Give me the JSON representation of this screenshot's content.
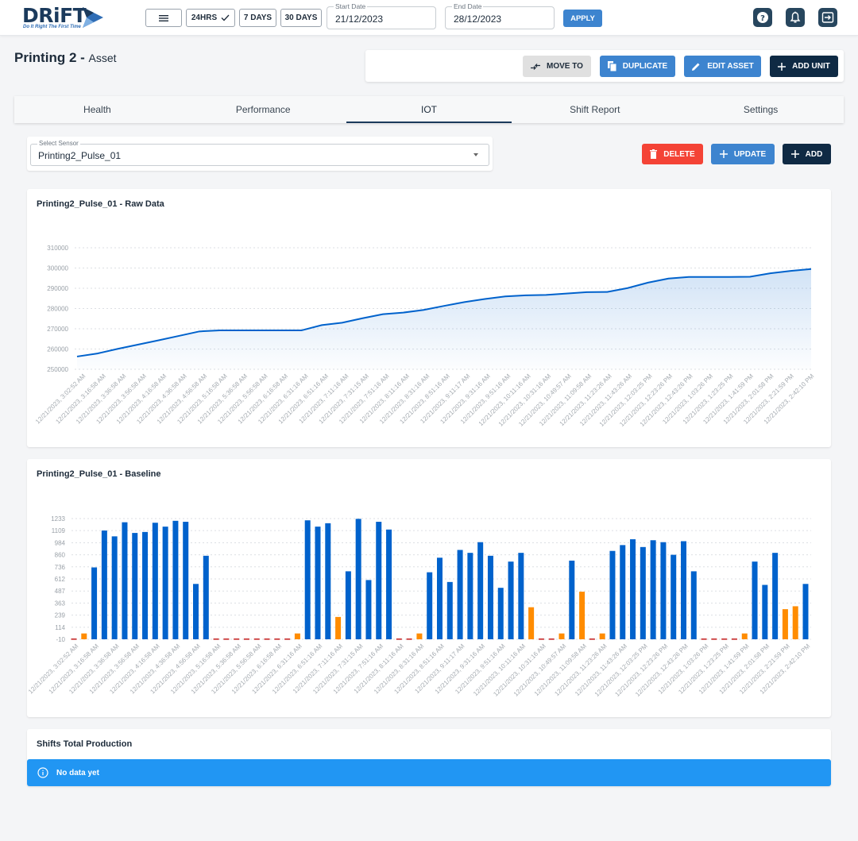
{
  "brand": {
    "name": "DRiFT",
    "tagline": "Do It Right The First Time"
  },
  "topbar": {
    "menu_button": "menu-icon",
    "range_buttons": [
      {
        "label": "24HRS",
        "selected": true
      },
      {
        "label": "7 DAYS",
        "selected": false
      },
      {
        "label": "30 DAYS",
        "selected": false
      }
    ],
    "start_date": {
      "label": "Start Date",
      "value": "21/12/2023"
    },
    "end_date": {
      "label": "End Date",
      "value": "28/12/2023"
    },
    "apply_label": "APPLY",
    "icons": [
      "help-icon",
      "bell-icon",
      "logout-icon"
    ]
  },
  "page": {
    "title": "Printing 2 -",
    "subtitle": "Asset"
  },
  "actions": {
    "move_to": "MOVE TO",
    "duplicate": "DUPLICATE",
    "edit_asset": "EDIT ASSET",
    "add_unit": "ADD UNIT"
  },
  "tabs": [
    {
      "label": "Health",
      "active": false
    },
    {
      "label": "Performance",
      "active": false
    },
    {
      "label": "IOT",
      "active": true
    },
    {
      "label": "Shift Report",
      "active": false
    },
    {
      "label": "Settings",
      "active": false
    }
  ],
  "sensor": {
    "label": "Select Sensor",
    "value": "Printing2_Pulse_01",
    "delete": "DELETE",
    "update": "UPDATE",
    "add": "ADD"
  },
  "colors": {
    "navy": "#0f2a44",
    "blue_button": "#3d84cf",
    "danger": "#f44336",
    "info": "#2196f3",
    "bar_blue": "#0062cc",
    "bar_orange": "#ff8c00",
    "bar_red": "#c62828"
  },
  "raw_chart": {
    "title": "Printing2_Pulse_01 - Raw Data"
  },
  "baseline_chart": {
    "title": "Printing2_Pulse_01 - Baseline"
  },
  "shifts": {
    "title": "Shifts Total Production",
    "message": "No data yet"
  },
  "chart_data": [
    {
      "type": "area",
      "title": "Printing2_Pulse_01 - Raw Data",
      "xlabel": "",
      "ylabel": "",
      "ylim": [
        250000,
        310000
      ],
      "yticks": [
        250000,
        260000,
        270000,
        280000,
        290000,
        300000,
        310000
      ],
      "grid": true,
      "x": [
        "12/21/2023, 3:02:52 AM",
        "12/21/2023, 3:16:58 AM",
        "12/21/2023, 3:36:58 AM",
        "12/21/2023, 3:56:58 AM",
        "12/21/2023, 4:16:58 AM",
        "12/21/2023, 4:36:58 AM",
        "12/21/2023, 4:56:58 AM",
        "12/21/2023, 5:16:58 AM",
        "12/21/2023, 5:36:58 AM",
        "12/21/2023, 5:56:58 AM",
        "12/21/2023, 6:16:58 AM",
        "12/21/2023, 6:31:16 AM",
        "12/21/2023, 6:51:16 AM",
        "12/21/2023, 7:11:16 AM",
        "12/21/2023, 7:31:15 AM",
        "12/21/2023, 7:51:16 AM",
        "12/21/2023, 8:11:16 AM",
        "12/21/2023, 8:31:16 AM",
        "12/21/2023, 8:51:16 AM",
        "12/21/2023, 9:11:17 AM",
        "12/21/2023, 9:31:16 AM",
        "12/21/2023, 9:51:16 AM",
        "12/21/2023, 10:11:16 AM",
        "12/21/2023, 10:31:16 AM",
        "12/21/2023, 10:49:57 AM",
        "12/21/2023, 11:09:58 AM",
        "12/21/2023, 11:23:26 AM",
        "12/21/2023, 11:43:26 AM",
        "12/21/2023, 12:03:25 PM",
        "12/21/2023, 12:23:26 PM",
        "12/21/2023, 12:43:26 PM",
        "12/21/2023, 1:03:26 PM",
        "12/21/2023, 1:23:25 PM",
        "12/21/2023, 1:41:59 PM",
        "12/21/2023, 2:01:58 PM",
        "12/21/2023, 2:21:59 PM",
        "12/21/2023, 2:42:10 PM"
      ],
      "values": [
        256300,
        257800,
        260100,
        262200,
        264300,
        266500,
        268700,
        269200,
        269200,
        269200,
        269200,
        269200,
        271800,
        273000,
        275200,
        277200,
        278000,
        279300,
        281300,
        283200,
        284700,
        286000,
        286500,
        286700,
        287400,
        288100,
        288200,
        290100,
        292800,
        294800,
        295600,
        295600,
        295600,
        295700,
        297400,
        298600,
        299500
      ],
      "series_color": "#0062cc"
    },
    {
      "type": "bar",
      "title": "Printing2_Pulse_01 - Baseline",
      "xlabel": "",
      "ylabel": "",
      "ylim": [
        -10,
        1233
      ],
      "yticks": [
        -10,
        114,
        239,
        363,
        487,
        612,
        736,
        860,
        984,
        1109,
        1233
      ],
      "grid": true,
      "x_tick_labels": [
        "12/21/2023, 3:02:52 AM",
        "12/21/2023, 3:16:58 AM",
        "12/21/2023, 3:36:58 AM",
        "12/21/2023, 3:56:58 AM",
        "12/21/2023, 4:16:58 AM",
        "12/21/2023, 4:36:58 AM",
        "12/21/2023, 4:56:58 AM",
        "12/21/2023, 5:16:58 AM",
        "12/21/2023, 5:36:58 AM",
        "12/21/2023, 5:56:58 AM",
        "12/21/2023, 6:16:58 AM",
        "12/21/2023, 6:31:16 AM",
        "12/21/2023, 6:51:16 AM",
        "12/21/2023, 7:11:16 AM",
        "12/21/2023, 7:31:15 AM",
        "12/21/2023, 7:51:16 AM",
        "12/21/2023, 8:11:16 AM",
        "12/21/2023, 8:31:16 AM",
        "12/21/2023, 8:51:16 AM",
        "12/21/2023, 9:11:17 AM",
        "12/21/2023, 9:31:16 AM",
        "12/21/2023, 9:51:16 AM",
        "12/21/2023, 10:11:16 AM",
        "12/21/2023, 10:31:16 AM",
        "12/21/2023, 10:49:57 AM",
        "12/21/2023, 11:09:58 AM",
        "12/21/2023, 11:23:26 AM",
        "12/21/2023, 11:43:26 AM",
        "12/21/2023, 12:03:25 PM",
        "12/21/2023, 12:23:26 PM",
        "12/21/2023, 12:43:26 PM",
        "12/21/2023, 1:03:26 PM",
        "12/21/2023, 1:23:25 PM",
        "12/21/2023, 1:41:59 PM",
        "12/21/2023, 2:01:58 PM",
        "12/21/2023, 2:21:59 PM",
        "12/21/2023, 2:42:10 PM"
      ],
      "bars": [
        {
          "v": 0,
          "c": "red"
        },
        {
          "v": 50,
          "c": "orange"
        },
        {
          "v": 730,
          "c": "blue"
        },
        {
          "v": 1110,
          "c": "blue"
        },
        {
          "v": 1050,
          "c": "blue"
        },
        {
          "v": 1195,
          "c": "blue"
        },
        {
          "v": 1085,
          "c": "blue"
        },
        {
          "v": 1095,
          "c": "blue"
        },
        {
          "v": 1190,
          "c": "blue"
        },
        {
          "v": 1150,
          "c": "blue"
        },
        {
          "v": 1210,
          "c": "blue"
        },
        {
          "v": 1200,
          "c": "blue"
        },
        {
          "v": 560,
          "c": "blue"
        },
        {
          "v": 850,
          "c": "blue"
        },
        {
          "v": 0,
          "c": "red"
        },
        {
          "v": 0,
          "c": "red"
        },
        {
          "v": 0,
          "c": "red"
        },
        {
          "v": 0,
          "c": "red"
        },
        {
          "v": 0,
          "c": "red"
        },
        {
          "v": 0,
          "c": "red"
        },
        {
          "v": 0,
          "c": "red"
        },
        {
          "v": 0,
          "c": "red"
        },
        {
          "v": 50,
          "c": "orange"
        },
        {
          "v": 1215,
          "c": "blue"
        },
        {
          "v": 1150,
          "c": "blue"
        },
        {
          "v": 1185,
          "c": "blue"
        },
        {
          "v": 220,
          "c": "orange"
        },
        {
          "v": 690,
          "c": "blue"
        },
        {
          "v": 1230,
          "c": "blue"
        },
        {
          "v": 600,
          "c": "blue"
        },
        {
          "v": 1200,
          "c": "blue"
        },
        {
          "v": 1120,
          "c": "blue"
        },
        {
          "v": 0,
          "c": "red"
        },
        {
          "v": 0,
          "c": "red"
        },
        {
          "v": 50,
          "c": "orange"
        },
        {
          "v": 680,
          "c": "blue"
        },
        {
          "v": 830,
          "c": "blue"
        },
        {
          "v": 580,
          "c": "blue"
        },
        {
          "v": 910,
          "c": "blue"
        },
        {
          "v": 880,
          "c": "blue"
        },
        {
          "v": 990,
          "c": "blue"
        },
        {
          "v": 850,
          "c": "blue"
        },
        {
          "v": 520,
          "c": "blue"
        },
        {
          "v": 790,
          "c": "blue"
        },
        {
          "v": 880,
          "c": "blue"
        },
        {
          "v": 320,
          "c": "orange"
        },
        {
          "v": 0,
          "c": "red"
        },
        {
          "v": 0,
          "c": "red"
        },
        {
          "v": 50,
          "c": "orange"
        },
        {
          "v": 800,
          "c": "blue"
        },
        {
          "v": 480,
          "c": "orange"
        },
        {
          "v": 0,
          "c": "red"
        },
        {
          "v": 50,
          "c": "orange"
        },
        {
          "v": 900,
          "c": "blue"
        },
        {
          "v": 960,
          "c": "blue"
        },
        {
          "v": 1020,
          "c": "blue"
        },
        {
          "v": 940,
          "c": "blue"
        },
        {
          "v": 1010,
          "c": "blue"
        },
        {
          "v": 990,
          "c": "blue"
        },
        {
          "v": 860,
          "c": "blue"
        },
        {
          "v": 1000,
          "c": "blue"
        },
        {
          "v": 690,
          "c": "blue"
        },
        {
          "v": 0,
          "c": "red"
        },
        {
          "v": 0,
          "c": "red"
        },
        {
          "v": 0,
          "c": "red"
        },
        {
          "v": 0,
          "c": "red"
        },
        {
          "v": 50,
          "c": "orange"
        },
        {
          "v": 790,
          "c": "blue"
        },
        {
          "v": 550,
          "c": "blue"
        },
        {
          "v": 880,
          "c": "blue"
        },
        {
          "v": 300,
          "c": "orange"
        },
        {
          "v": 330,
          "c": "orange"
        },
        {
          "v": 560,
          "c": "blue"
        }
      ],
      "legend": []
    }
  ]
}
